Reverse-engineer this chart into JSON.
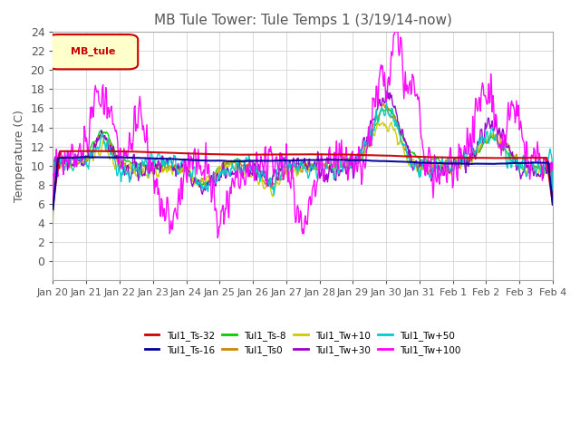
{
  "title": "MB Tule Tower: Tule Temps 1 (3/19/14-now)",
  "ylabel": "Temperature (C)",
  "ylim": [
    -2,
    24
  ],
  "yticks": [
    0,
    2,
    4,
    6,
    8,
    10,
    12,
    14,
    16,
    18,
    20,
    22,
    24
  ],
  "date_labels": [
    "Jan 20",
    "Jan 21",
    "Jan 22",
    "Jan 23",
    "Jan 24",
    "Jan 25",
    "Jan 26",
    "Jan 27",
    "Jan 28",
    "Jan 29",
    "Jan 30",
    "Jan 31",
    "Feb 1",
    "Feb 2",
    "Feb 3",
    "Feb 4"
  ],
  "legend_box_label": "MB_tule",
  "series": [
    {
      "name": "Tul1_Ts-32",
      "color": "#cc0000",
      "linewidth": 1.5
    },
    {
      "name": "Tul1_Ts-16",
      "color": "#000099",
      "linewidth": 1.5
    },
    {
      "name": "Tul1_Ts-8",
      "color": "#00cc00",
      "linewidth": 1.0
    },
    {
      "name": "Tul1_Ts0",
      "color": "#cc8800",
      "linewidth": 1.0
    },
    {
      "name": "Tul1_Tw+10",
      "color": "#cccc00",
      "linewidth": 1.0
    },
    {
      "name": "Tul1_Tw+30",
      "color": "#9900cc",
      "linewidth": 1.0
    },
    {
      "name": "Tul1_Tw+50",
      "color": "#00cccc",
      "linewidth": 1.0
    },
    {
      "name": "Tul1_Tw+100",
      "color": "#ff00ff",
      "linewidth": 1.0
    }
  ],
  "grid_color": "#cccccc",
  "background_color": "#ffffff",
  "title_fontsize": 11,
  "axis_fontsize": 9
}
